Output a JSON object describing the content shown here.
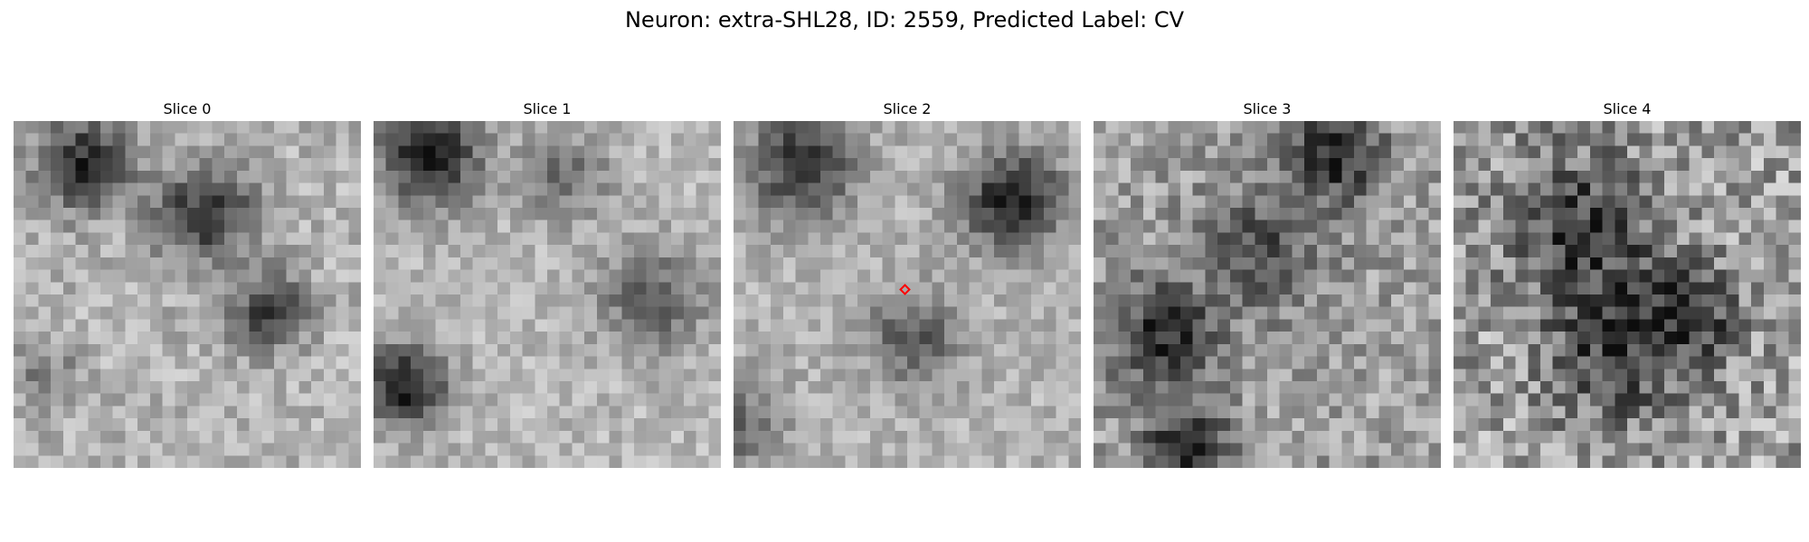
{
  "figure": {
    "title": "Neuron: extra-SHL28, ID: 2559, Predicted Label: CV"
  },
  "grid_size": 28,
  "slices": [
    {
      "title": "Slice 0",
      "blobs": [
        [
          5,
          3,
          2.6,
          0.55
        ],
        [
          15,
          7,
          2.8,
          0.5
        ],
        [
          20,
          15,
          2.2,
          0.45
        ],
        [
          2,
          20,
          2.0,
          0.2
        ]
      ],
      "base": 0.7,
      "noise": 0.14,
      "seed": 11,
      "marker": false
    },
    {
      "title": "Slice 1",
      "blobs": [
        [
          4,
          2,
          3.0,
          0.6
        ],
        [
          2,
          21,
          2.4,
          0.6
        ],
        [
          22,
          14,
          3.0,
          0.35
        ],
        [
          15,
          4,
          2.4,
          0.3
        ]
      ],
      "base": 0.72,
      "noise": 0.12,
      "seed": 23,
      "marker": false
    },
    {
      "title": "Slice 2",
      "blobs": [
        [
          5,
          3,
          3.0,
          0.5
        ],
        [
          22,
          6,
          2.8,
          0.6
        ],
        [
          14,
          17,
          2.6,
          0.35
        ],
        [
          0,
          24,
          2.5,
          0.3
        ]
      ],
      "base": 0.7,
      "noise": 0.12,
      "seed": 37,
      "marker": true
    },
    {
      "title": "Slice 3",
      "blobs": [
        [
          19,
          2,
          2.6,
          0.5
        ],
        [
          5,
          17,
          3.0,
          0.45
        ],
        [
          7,
          26,
          2.4,
          0.5
        ],
        [
          13,
          10,
          3.5,
          0.3
        ]
      ],
      "base": 0.62,
      "noise": 0.18,
      "seed": 51,
      "marker": false
    },
    {
      "title": "Slice 4",
      "blobs": [
        [
          10,
          8,
          4.0,
          0.4
        ],
        [
          13,
          18,
          4.0,
          0.4
        ],
        [
          19,
          15,
          2.4,
          0.35
        ]
      ],
      "base": 0.62,
      "noise": 0.24,
      "seed": 67,
      "marker": false
    }
  ]
}
